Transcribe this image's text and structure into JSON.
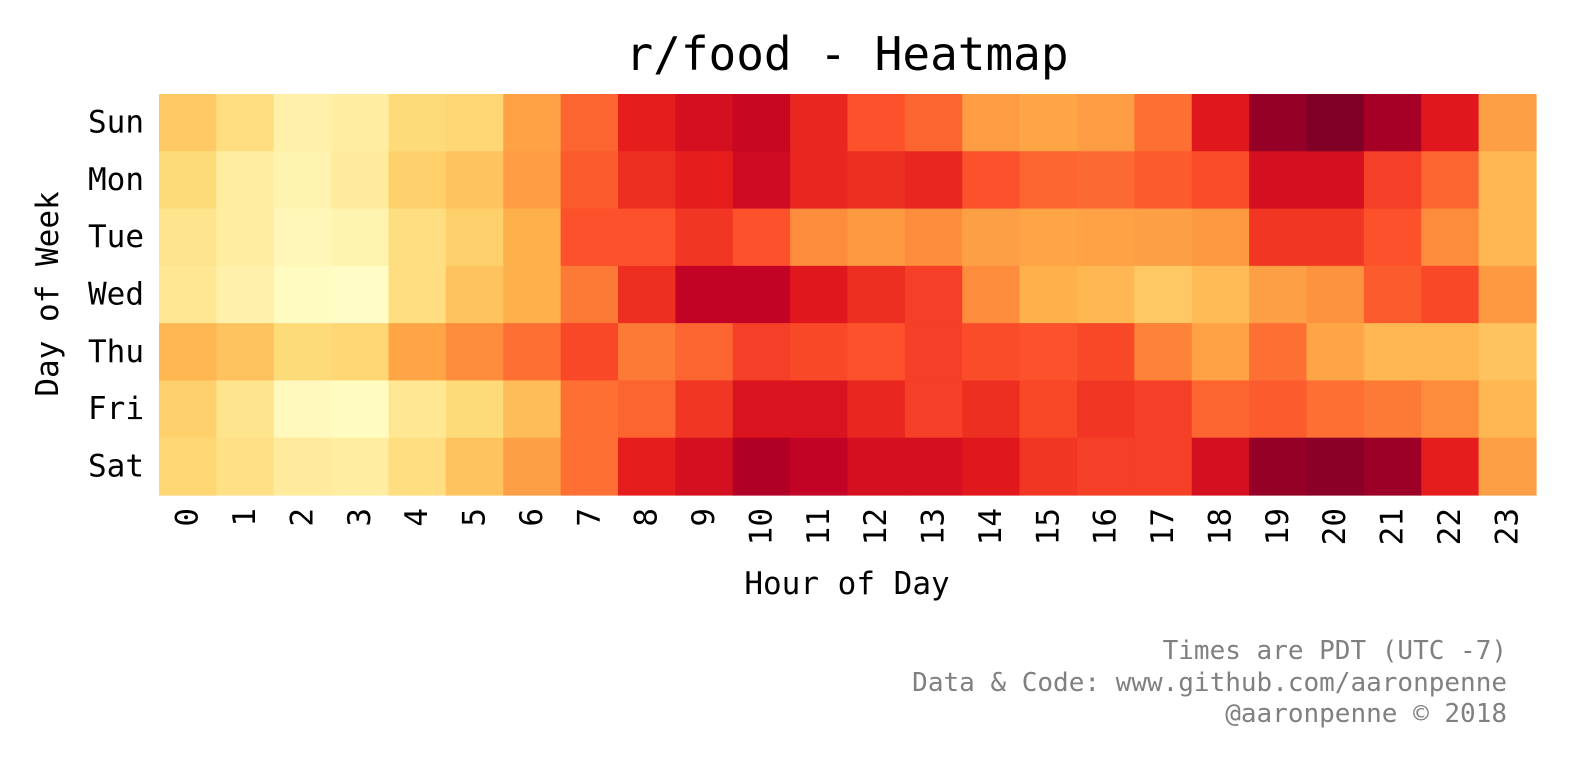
{
  "chart_data": {
    "type": "heatmap",
    "title": "r/food - Heatmap",
    "xlabel": "Hour of Day",
    "ylabel": "Day of Week",
    "colormap": "YlOrRd",
    "value_scale": "relative intensity 0 (light yellow) to 1 (dark red)",
    "x": [
      "0",
      "1",
      "2",
      "3",
      "4",
      "5",
      "6",
      "7",
      "8",
      "9",
      "10",
      "11",
      "12",
      "13",
      "14",
      "15",
      "16",
      "17",
      "18",
      "19",
      "20",
      "21",
      "22",
      "23"
    ],
    "y": [
      "Sun",
      "Mon",
      "Tue",
      "Wed",
      "Thu",
      "Fri",
      "Sat"
    ],
    "z": [
      [
        0.3,
        0.22,
        0.1,
        0.12,
        0.24,
        0.26,
        0.43,
        0.58,
        0.74,
        0.8,
        0.84,
        0.72,
        0.62,
        0.58,
        0.45,
        0.42,
        0.45,
        0.56,
        0.76,
        0.96,
        1.0,
        0.92,
        0.76,
        0.44
      ],
      [
        0.24,
        0.12,
        0.08,
        0.14,
        0.28,
        0.32,
        0.45,
        0.6,
        0.7,
        0.74,
        0.82,
        0.72,
        0.7,
        0.72,
        0.62,
        0.58,
        0.57,
        0.6,
        0.63,
        0.8,
        0.8,
        0.66,
        0.58,
        0.36
      ],
      [
        0.18,
        0.12,
        0.06,
        0.08,
        0.22,
        0.28,
        0.38,
        0.62,
        0.62,
        0.68,
        0.62,
        0.5,
        0.46,
        0.5,
        0.44,
        0.42,
        0.43,
        0.44,
        0.46,
        0.68,
        0.68,
        0.62,
        0.5,
        0.36
      ],
      [
        0.16,
        0.1,
        0.03,
        0.02,
        0.22,
        0.32,
        0.38,
        0.54,
        0.7,
        0.86,
        0.86,
        0.76,
        0.7,
        0.66,
        0.5,
        0.38,
        0.36,
        0.3,
        0.35,
        0.44,
        0.48,
        0.6,
        0.64,
        0.46
      ],
      [
        0.36,
        0.32,
        0.24,
        0.26,
        0.42,
        0.5,
        0.56,
        0.64,
        0.54,
        0.58,
        0.66,
        0.64,
        0.62,
        0.66,
        0.63,
        0.62,
        0.64,
        0.52,
        0.43,
        0.56,
        0.42,
        0.36,
        0.36,
        0.32
      ],
      [
        0.28,
        0.18,
        0.04,
        0.03,
        0.16,
        0.24,
        0.34,
        0.56,
        0.58,
        0.68,
        0.78,
        0.78,
        0.72,
        0.66,
        0.7,
        0.64,
        0.68,
        0.66,
        0.58,
        0.6,
        0.56,
        0.54,
        0.5,
        0.36
      ],
      [
        0.26,
        0.2,
        0.14,
        0.12,
        0.22,
        0.32,
        0.44,
        0.56,
        0.74,
        0.8,
        0.9,
        0.86,
        0.8,
        0.8,
        0.76,
        0.68,
        0.66,
        0.66,
        0.8,
        0.96,
        0.98,
        0.94,
        0.74,
        0.44
      ]
    ]
  }
}
